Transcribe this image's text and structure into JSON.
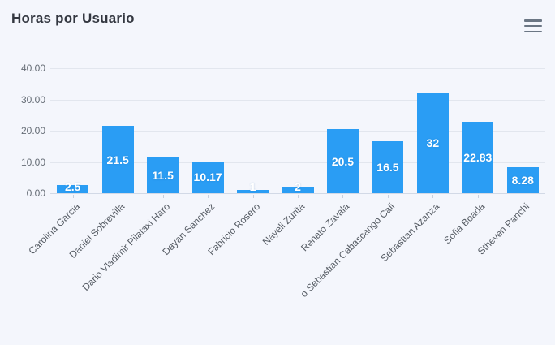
{
  "chart": {
    "title": "Horas por Usuario"
  },
  "toolbar": {
    "menu_icon": "hamburger-menu-icon"
  },
  "colors": {
    "background": "#f4f6fc",
    "bar": "#2a9df4",
    "grid": "#e2e6ee",
    "axis_line": "#d2d9e6",
    "axis_text": "#666d76",
    "category_text": "#565c64",
    "value_label_text": "#ffffff",
    "title_text": "#333740",
    "menu_icon": "#6b7684"
  },
  "chart_data": {
    "type": "bar",
    "title": "Horas por Usuario",
    "categories": [
      "Carolina Garcia",
      "Daniel Sobrevilla",
      "Dario Vladimir Pilataxi Haro",
      "Dayan Sanchez",
      "Fabricio Rosero",
      "Nayeli Zurita",
      "Renato Zavala",
      "o Sebastian Cabascango Cali",
      "Sebastian Azanza",
      "Sofia Boada",
      "Stheven Panchi"
    ],
    "values": [
      2.5,
      21.5,
      11.5,
      10.17,
      1,
      2,
      20.5,
      16.5,
      32,
      22.83,
      8.28
    ],
    "value_labels": [
      "2.5",
      "21.5",
      "11.5",
      "10.17",
      "1",
      "2",
      "20.5",
      "16.5",
      "32",
      "22.83",
      "8.28"
    ],
    "xlabel": "",
    "ylabel": "",
    "ylim": [
      0,
      40
    ],
    "yticks": [
      0,
      10,
      20,
      30,
      40
    ],
    "ytick_labels": [
      "0.00",
      "10.00",
      "20.00",
      "30.00",
      "40.00"
    ],
    "grid": true,
    "legend": false,
    "label_rotation_deg": -45,
    "bar_label_position": "inside-center"
  }
}
